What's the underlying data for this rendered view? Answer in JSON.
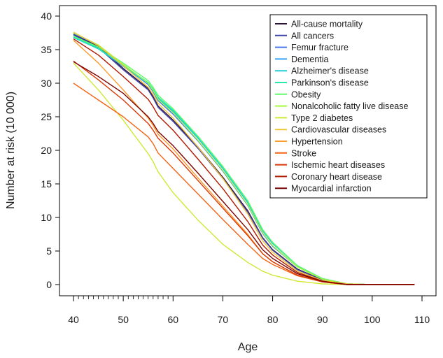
{
  "chart_data": {
    "type": "line",
    "title": "",
    "xlabel": "Age",
    "ylabel": "Number at risk (10 000)",
    "xlim": [
      40,
      110
    ],
    "ylim": [
      0,
      40
    ],
    "x_ticks": [
      40,
      50,
      60,
      70,
      80,
      90,
      100,
      110
    ],
    "y_ticks": [
      0,
      5,
      10,
      15,
      20,
      25,
      30,
      35,
      40
    ],
    "legend_position": "top-right",
    "series": [
      {
        "name": "All-cause mortality",
        "color": "#30123b",
        "points": [
          [
            40,
            37.3
          ],
          [
            45,
            35.5
          ],
          [
            50,
            32.2
          ],
          [
            55,
            29.2
          ],
          [
            56,
            28.0
          ],
          [
            57,
            26.6
          ],
          [
            60,
            24.5
          ],
          [
            65,
            20.5
          ],
          [
            70,
            16.0
          ],
          [
            75,
            11.0
          ],
          [
            78,
            7.0
          ],
          [
            80,
            5.2
          ],
          [
            85,
            2.3
          ],
          [
            90,
            0.7
          ],
          [
            95,
            0.1
          ],
          [
            100,
            0.0
          ],
          [
            108.5,
            0.0
          ]
        ]
      },
      {
        "name": "All cancers",
        "color": "#4145ab",
        "points": [
          [
            40,
            37.2
          ],
          [
            45,
            35.3
          ],
          [
            50,
            32.0
          ],
          [
            55,
            29.0
          ],
          [
            56,
            27.8
          ],
          [
            57,
            26.4
          ],
          [
            60,
            24.3
          ],
          [
            65,
            20.3
          ],
          [
            70,
            15.8
          ],
          [
            75,
            10.8
          ],
          [
            78,
            6.9
          ],
          [
            80,
            5.1
          ],
          [
            85,
            2.2
          ],
          [
            90,
            0.7
          ],
          [
            95,
            0.1
          ],
          [
            100,
            0.0
          ],
          [
            108.5,
            0.0
          ]
        ]
      },
      {
        "name": "Femur fracture",
        "color": "#4675ed",
        "points": [
          [
            40,
            37.4
          ],
          [
            45,
            35.6
          ],
          [
            50,
            32.6
          ],
          [
            55,
            29.8
          ],
          [
            56,
            28.7
          ],
          [
            57,
            27.4
          ],
          [
            60,
            25.4
          ],
          [
            65,
            21.4
          ],
          [
            70,
            16.9
          ],
          [
            75,
            11.8
          ],
          [
            78,
            7.6
          ],
          [
            80,
            5.7
          ],
          [
            85,
            2.6
          ],
          [
            90,
            0.8
          ],
          [
            95,
            0.1
          ],
          [
            100,
            0.0
          ],
          [
            108.5,
            0.0
          ]
        ]
      },
      {
        "name": "Dementia",
        "color": "#39a2fc",
        "points": [
          [
            40,
            37.0
          ],
          [
            45,
            35.2
          ],
          [
            50,
            32.5
          ],
          [
            55,
            29.9
          ],
          [
            56,
            28.9
          ],
          [
            57,
            27.7
          ],
          [
            60,
            25.8
          ],
          [
            65,
            21.8
          ],
          [
            70,
            17.3
          ],
          [
            75,
            12.2
          ],
          [
            78,
            8.0
          ],
          [
            80,
            6.1
          ],
          [
            85,
            2.8
          ],
          [
            90,
            0.9
          ],
          [
            95,
            0.1
          ],
          [
            100,
            0.0
          ],
          [
            108.5,
            0.0
          ]
        ]
      },
      {
        "name": "Alzheimer's disease",
        "color": "#1bcfd4",
        "points": [
          [
            40,
            36.8
          ],
          [
            45,
            35.1
          ],
          [
            50,
            32.6
          ],
          [
            55,
            30.0
          ],
          [
            56,
            29.0
          ],
          [
            57,
            27.8
          ],
          [
            60,
            25.9
          ],
          [
            65,
            21.9
          ],
          [
            70,
            17.4
          ],
          [
            75,
            12.3
          ],
          [
            78,
            8.1
          ],
          [
            80,
            6.2
          ],
          [
            85,
            2.8
          ],
          [
            90,
            0.9
          ],
          [
            95,
            0.1
          ],
          [
            100,
            0.0
          ],
          [
            108.5,
            0.0
          ]
        ]
      },
      {
        "name": "Parkinson's disease",
        "color": "#24eca6",
        "points": [
          [
            40,
            36.9
          ],
          [
            45,
            35.2
          ],
          [
            50,
            32.7
          ],
          [
            55,
            30.1
          ],
          [
            56,
            29.1
          ],
          [
            57,
            27.9
          ],
          [
            60,
            26.0
          ],
          [
            65,
            22.0
          ],
          [
            70,
            17.5
          ],
          [
            75,
            12.4
          ],
          [
            78,
            8.2
          ],
          [
            80,
            6.2
          ],
          [
            85,
            2.8
          ],
          [
            90,
            0.9
          ],
          [
            95,
            0.1
          ],
          [
            100,
            0.0
          ],
          [
            108.5,
            0.0
          ]
        ]
      },
      {
        "name": "Obesity",
        "color": "#61fc6c",
        "points": [
          [
            40,
            37.0
          ],
          [
            45,
            35.4
          ],
          [
            50,
            33.0
          ],
          [
            55,
            30.4
          ],
          [
            56,
            29.4
          ],
          [
            57,
            28.2
          ],
          [
            60,
            26.2
          ],
          [
            65,
            22.1
          ],
          [
            70,
            17.6
          ],
          [
            75,
            12.5
          ],
          [
            78,
            8.2
          ],
          [
            80,
            6.3
          ],
          [
            85,
            2.8
          ],
          [
            90,
            0.9
          ],
          [
            95,
            0.1
          ],
          [
            100,
            0.0
          ],
          [
            108.5,
            0.0
          ]
        ]
      },
      {
        "name": "Nonalcoholic fatty live disease",
        "color": "#a4fc3b",
        "points": [
          [
            40,
            37.5
          ],
          [
            45,
            35.7
          ],
          [
            50,
            32.8
          ],
          [
            55,
            30.0
          ],
          [
            56,
            28.9
          ],
          [
            57,
            27.6
          ],
          [
            60,
            25.6
          ],
          [
            65,
            21.5
          ],
          [
            70,
            17.0
          ],
          [
            75,
            11.9
          ],
          [
            78,
            7.7
          ],
          [
            80,
            5.8
          ],
          [
            85,
            2.6
          ],
          [
            90,
            0.8
          ],
          [
            95,
            0.1
          ],
          [
            100,
            0.0
          ],
          [
            108.5,
            0.0
          ]
        ]
      },
      {
        "name": "Type 2 diabetes",
        "color": "#d1e834",
        "points": [
          [
            40,
            33.0
          ],
          [
            45,
            29.0
          ],
          [
            50,
            24.5
          ],
          [
            55,
            19.5
          ],
          [
            56,
            18.3
          ],
          [
            57,
            16.8
          ],
          [
            60,
            13.7
          ],
          [
            65,
            9.6
          ],
          [
            70,
            6.0
          ],
          [
            75,
            3.3
          ],
          [
            78,
            2.0
          ],
          [
            80,
            1.4
          ],
          [
            85,
            0.5
          ],
          [
            90,
            0.1
          ],
          [
            95,
            0.0
          ],
          [
            100,
            0.0
          ],
          [
            108.5,
            0.0
          ]
        ]
      },
      {
        "name": "Cardiovascular diseases",
        "color": "#f3c63a",
        "points": [
          [
            40,
            37.6
          ],
          [
            45,
            35.6
          ],
          [
            50,
            32.6
          ],
          [
            55,
            29.4
          ],
          [
            56,
            28.3
          ],
          [
            57,
            27.0
          ],
          [
            60,
            24.8
          ],
          [
            65,
            20.5
          ],
          [
            70,
            15.8
          ],
          [
            75,
            10.5
          ],
          [
            78,
            6.5
          ],
          [
            80,
            4.8
          ],
          [
            85,
            2.0
          ],
          [
            90,
            0.6
          ],
          [
            95,
            0.1
          ],
          [
            100,
            0.0
          ],
          [
            108.5,
            0.0
          ]
        ]
      },
      {
        "name": "Hypertension",
        "color": "#fe9b2d",
        "points": [
          [
            40,
            36.4
          ],
          [
            45,
            33.0
          ],
          [
            50,
            29.0
          ],
          [
            55,
            24.8
          ],
          [
            56,
            23.7
          ],
          [
            57,
            22.4
          ],
          [
            60,
            20.2
          ],
          [
            65,
            15.9
          ],
          [
            70,
            11.7
          ],
          [
            75,
            7.5
          ],
          [
            78,
            4.6
          ],
          [
            80,
            3.4
          ],
          [
            85,
            1.4
          ],
          [
            90,
            0.4
          ],
          [
            95,
            0.0
          ],
          [
            100,
            0.0
          ],
          [
            108.5,
            0.0
          ]
        ]
      },
      {
        "name": "Stroke",
        "color": "#f36315",
        "points": [
          [
            40,
            30.0
          ],
          [
            45,
            27.5
          ],
          [
            50,
            25.0
          ],
          [
            55,
            22.0
          ],
          [
            56,
            21.0
          ],
          [
            57,
            19.6
          ],
          [
            60,
            17.3
          ],
          [
            65,
            13.5
          ],
          [
            70,
            9.7
          ],
          [
            75,
            6.0
          ],
          [
            78,
            3.9
          ],
          [
            80,
            3.0
          ],
          [
            85,
            1.3
          ],
          [
            90,
            0.4
          ],
          [
            95,
            0.0
          ],
          [
            100,
            0.0
          ],
          [
            108.5,
            0.0
          ]
        ]
      },
      {
        "name": "Ischemic heart diseases",
        "color": "#d93806",
        "points": [
          [
            40,
            33.3
          ],
          [
            45,
            30.5
          ],
          [
            50,
            27.5
          ],
          [
            55,
            24.0
          ],
          [
            56,
            23.0
          ],
          [
            57,
            21.8
          ],
          [
            60,
            19.6
          ],
          [
            65,
            15.5
          ],
          [
            70,
            11.4
          ],
          [
            75,
            7.3
          ],
          [
            78,
            4.6
          ],
          [
            80,
            3.4
          ],
          [
            85,
            1.4
          ],
          [
            90,
            0.4
          ],
          [
            95,
            0.0
          ],
          [
            100,
            0.0
          ],
          [
            108.5,
            0.0
          ]
        ]
      },
      {
        "name": "Coronary heart disease",
        "color": "#b11901",
        "points": [
          [
            40,
            36.6
          ],
          [
            45,
            34.2
          ],
          [
            50,
            31.0
          ],
          [
            55,
            27.6
          ],
          [
            56,
            26.5
          ],
          [
            57,
            25.2
          ],
          [
            60,
            23.0
          ],
          [
            65,
            18.7
          ],
          [
            70,
            14.3
          ],
          [
            75,
            9.4
          ],
          [
            78,
            5.9
          ],
          [
            80,
            4.4
          ],
          [
            85,
            1.8
          ],
          [
            90,
            0.5
          ],
          [
            95,
            0.0
          ],
          [
            100,
            0.0
          ],
          [
            108.5,
            0.0
          ]
        ]
      },
      {
        "name": "Myocardial infarction",
        "color": "#7a0403",
        "points": [
          [
            40,
            33.2
          ],
          [
            45,
            31.0
          ],
          [
            50,
            28.5
          ],
          [
            55,
            25.0
          ],
          [
            56,
            24.0
          ],
          [
            57,
            22.8
          ],
          [
            60,
            20.7
          ],
          [
            65,
            16.6
          ],
          [
            70,
            12.4
          ],
          [
            75,
            8.2
          ],
          [
            78,
            5.2
          ],
          [
            80,
            3.9
          ],
          [
            85,
            1.6
          ],
          [
            90,
            0.5
          ],
          [
            95,
            0.0
          ],
          [
            100,
            0.0
          ],
          [
            108.5,
            0.0
          ]
        ]
      }
    ]
  }
}
